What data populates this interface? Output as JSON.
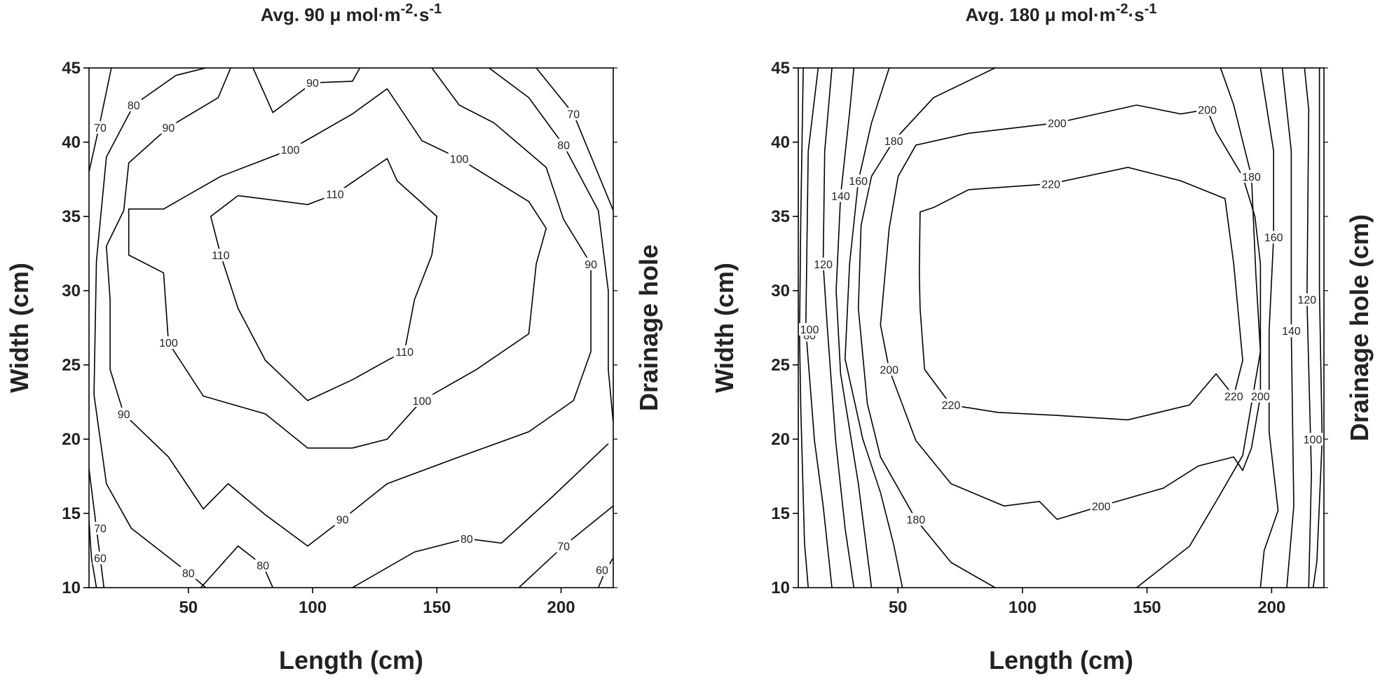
{
  "chart_data": [
    {
      "type": "contour",
      "title": [
        "Avg. 90 μ mol·m",
        "-2",
        "·s",
        "-1"
      ],
      "x_label": "Length (cm)",
      "y_label": "Width (cm)",
      "y2_label": "Drainage hole",
      "xlim": [
        10,
        221
      ],
      "ylim": [
        10,
        45
      ],
      "xticks": [
        50,
        100,
        150,
        200
      ],
      "yticks": [
        10,
        15,
        20,
        25,
        30,
        35,
        40,
        45
      ],
      "color": "#000000",
      "contours": [
        {
          "level": 60,
          "x": [
            10,
            11,
            13
          ],
          "y": [
            14.5,
            12,
            10
          ]
        },
        {
          "level": 70,
          "x": [
            19,
            14,
            10
          ],
          "y": [
            45,
            41,
            38
          ]
        },
        {
          "level": 70,
          "x": [
            10,
            13,
            16
          ],
          "y": [
            18,
            14,
            10
          ]
        },
        {
          "level": 80,
          "x": [
            57,
            45,
            28,
            17,
            13,
            12,
            17,
            27,
            50,
            57
          ],
          "y": [
            45,
            44.5,
            42.5,
            39,
            32,
            23,
            17,
            14,
            11,
            10
          ]
        },
        {
          "level": 80,
          "x": [
            55,
            70,
            80,
            84
          ],
          "y": [
            10,
            12.8,
            11.5,
            10
          ]
        },
        {
          "level": 80,
          "x": [
            116,
            141,
            162,
            176,
            197,
            219
          ],
          "y": [
            10,
            12.4,
            13.3,
            13,
            16.2,
            19.7
          ]
        },
        {
          "level": 80,
          "x": [
            171,
            187,
            201,
            215,
            219,
            219,
            221
          ],
          "y": [
            45,
            43,
            39.8,
            35.4,
            30,
            24.7,
            21.1
          ]
        },
        {
          "level": 70,
          "x": [
            190,
            205,
            221
          ],
          "y": [
            45,
            41.9,
            35.4
          ]
        },
        {
          "level": 70,
          "x": [
            183,
            201,
            221
          ],
          "y": [
            10,
            12.8,
            15.5
          ]
        },
        {
          "level": 60,
          "x": [
            215,
            218,
            221
          ],
          "y": [
            10,
            11.2,
            12
          ]
        },
        {
          "level": 90,
          "x": [
            67,
            62,
            42,
            26,
            24,
            17,
            18.5,
            18.5,
            24,
            42,
            56,
            66,
            81,
            98,
            112,
            130,
            159,
            187,
            205,
            212,
            212,
            201,
            194,
            173,
            159,
            148
          ],
          "y": [
            45,
            43,
            41,
            38.6,
            35.4,
            33,
            29.4,
            24.7,
            21.7,
            18.8,
            15.3,
            17,
            14.9,
            12.8,
            14.6,
            17,
            18.8,
            20.5,
            22.6,
            25.9,
            31.8,
            34.8,
            38.3,
            41.3,
            42.5,
            45
          ]
        },
        {
          "level": 90,
          "x": [
            76,
            84,
            100,
            116,
            119
          ],
          "y": [
            45,
            42,
            44,
            44.1,
            45
          ]
        },
        {
          "level": 100,
          "x": [
            130,
            116,
            91,
            63,
            40,
            26,
            26,
            40,
            42,
            56,
            81,
            98,
            116,
            130,
            144,
            166,
            187,
            190,
            194,
            187,
            159,
            144,
            130
          ],
          "y": [
            43.6,
            41.9,
            39.5,
            37.7,
            35.5,
            35.5,
            32.4,
            31.2,
            26.5,
            22.9,
            21.7,
            19.4,
            19.4,
            20,
            22.6,
            24.7,
            27.1,
            31.8,
            34.2,
            36,
            38.9,
            40.1,
            43.6
          ]
        },
        {
          "level": 110,
          "x": [
            70,
            98,
            109,
            130,
            134,
            150,
            148,
            141,
            137,
            130,
            116,
            98,
            81,
            70,
            63,
            59,
            70
          ],
          "y": [
            36.4,
            35.8,
            36.5,
            38.9,
            37.4,
            35,
            32.4,
            29.4,
            25.9,
            25.3,
            24,
            22.6,
            25.3,
            28.8,
            32.4,
            35,
            36.4
          ]
        }
      ]
    },
    {
      "type": "contour",
      "title": [
        "Avg. 180 μ mol·m",
        "-2",
        "·s",
        "-1"
      ],
      "x_label": "Length (cm)",
      "y_label": "Width (cm)",
      "y2_label": "Drainage hole (cm)",
      "xlim": [
        10,
        221
      ],
      "ylim": [
        10,
        45
      ],
      "xticks": [
        50,
        100,
        150,
        200
      ],
      "yticks": [
        10,
        15,
        20,
        25,
        30,
        35,
        40,
        45
      ],
      "color": "#000000",
      "contours": [
        {
          "level": 80,
          "x": [
            12,
            11,
            10.5,
            11,
            12.5,
            14
          ],
          "y": [
            45,
            35,
            27,
            22,
            13,
            10
          ]
        },
        {
          "level": 100,
          "x": [
            18,
            14,
            13,
            16.5,
            20,
            23.5
          ],
          "y": [
            45,
            39.4,
            27.4,
            19.9,
            15.5,
            10
          ]
        },
        {
          "level": 120,
          "x": [
            23.5,
            20.6,
            20,
            21.7,
            25,
            28.8,
            32.3
          ],
          "y": [
            45,
            39.4,
            31.8,
            27.4,
            19.9,
            14,
            10
          ]
        },
        {
          "level": 140,
          "x": [
            32.3,
            30.6,
            27,
            25.2,
            27,
            34.1,
            39.4
          ],
          "y": [
            45,
            42,
            36.4,
            30,
            24.4,
            17,
            10
          ]
        },
        {
          "level": 160,
          "x": [
            46.5,
            39.4,
            34.1,
            30.6,
            28.8,
            35.9,
            43,
            48.3,
            51.8
          ],
          "y": [
            45,
            41.3,
            37.4,
            31.8,
            25.4,
            20,
            16.4,
            12.9,
            10
          ]
        },
        {
          "level": 180,
          "x": [
            89,
            64.3,
            48.3,
            39.4,
            35.2,
            34.1,
            37.7,
            43,
            57.2,
            71.3,
            89
          ],
          "y": [
            45,
            43,
            40.1,
            37.7,
            34.4,
            28.8,
            22.4,
            18.8,
            14.6,
            11.7,
            10
          ]
        },
        {
          "level": 200,
          "x": [
            145.8,
            163.5,
            174.2,
            177.7,
            188.4,
            193.3,
            195.5,
            195.5,
            195.5,
            191.9,
            188.4,
            184.8,
            170.6,
            156.5,
            131.6,
            113.9,
            106.8,
            92.6,
            71.3,
            57.2,
            46.5,
            43,
            46.5,
            50.1,
            57.2,
            78.4,
            113.9,
            145.8
          ],
          "y": [
            42.5,
            41.9,
            42.2,
            40.7,
            37.7,
            35,
            31.8,
            25.9,
            22.9,
            19.4,
            17.9,
            18.8,
            18.2,
            16.7,
            15.5,
            14.6,
            15.8,
            15.5,
            17,
            19.9,
            24.7,
            27.7,
            34.2,
            37.7,
            39.8,
            40.6,
            41.3,
            42.5
          ]
        },
        {
          "level": 220,
          "x": [
            64.3,
            78.4,
            111.4,
            142.3,
            163.5,
            181.3,
            184.8,
            188.4,
            184.8,
            177.7,
            167.1,
            142.3,
            113.9,
            90.1,
            71.3,
            60.7,
            58.9,
            58.6,
            58.9,
            64.3
          ],
          "y": [
            35.6,
            36.8,
            37.2,
            38.3,
            37.4,
            36.2,
            31.8,
            25.3,
            22.9,
            24.4,
            22.3,
            21.3,
            21.6,
            21.8,
            22.3,
            24.7,
            28.8,
            31.2,
            35.3,
            35.6
          ]
        },
        {
          "level": 180,
          "x": [
            179.5,
            184.8,
            191.9,
            193.7,
            195.5,
            188.4,
            177.7,
            167.1,
            145.8
          ],
          "y": [
            45,
            42.5,
            37.7,
            31,
            25.9,
            18.9,
            15.8,
            12.8,
            10
          ]
        },
        {
          "level": 160,
          "x": [
            195.5,
            200.8,
            200.8,
            199,
            199,
            202.6,
            197,
            195.5
          ],
          "y": [
            45,
            39.4,
            33.6,
            27.3,
            20.5,
            15.2,
            12.5,
            10
          ]
        },
        {
          "level": 140,
          "x": [
            204.3,
            207.9,
            207.9,
            208.9,
            206.1
          ],
          "y": [
            45,
            39.4,
            27.3,
            15.5,
            10
          ]
        },
        {
          "level": 120,
          "x": [
            213.2,
            214.9,
            214.2,
            216,
            214.9
          ],
          "y": [
            45,
            42.2,
            29.4,
            17.7,
            10
          ]
        },
        {
          "level": 100,
          "x": [
            219.2,
            219.2,
            220.3,
            218.2,
            216.7
          ],
          "y": [
            45,
            30,
            20,
            11.8,
            10
          ]
        }
      ]
    }
  ]
}
